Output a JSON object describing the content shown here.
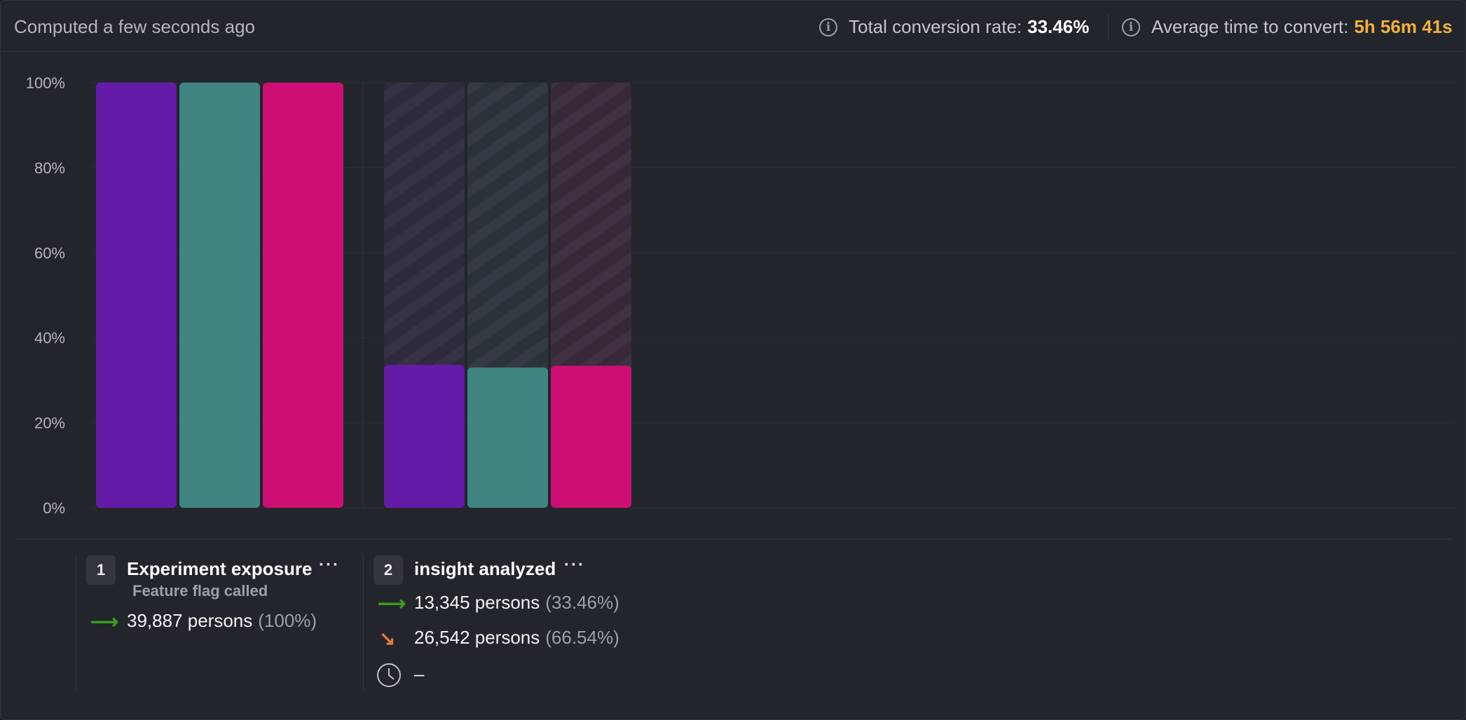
{
  "header": {
    "computed_text": "Computed a few seconds ago",
    "total_conversion_label": "Total conversion rate:",
    "total_conversion_value": "33.46%",
    "avg_time_label": "Average time to convert:",
    "avg_time_value": "5h 56m 41s",
    "info_icon": "info-icon"
  },
  "colors": {
    "background": "#23252c",
    "series_purple": "#631ba8",
    "series_teal": "#408582",
    "series_pink": "#cd0f74",
    "accent_orange": "#f4b03b",
    "arrow_green": "#3a9c1d",
    "arrow_orange": "#e57a3c"
  },
  "chart_data": {
    "type": "bar",
    "categories": [
      "Experiment exposure",
      "insight analyzed"
    ],
    "series": [
      {
        "color": "#631ba8",
        "values": [
          100,
          33.6
        ]
      },
      {
        "color": "#408582",
        "values": [
          100,
          33.0
        ]
      },
      {
        "color": "#cd0f74",
        "values": [
          100,
          33.4
        ]
      }
    ],
    "y_ticks": [
      "0%",
      "20%",
      "40%",
      "60%",
      "80%",
      "100%"
    ],
    "ylim": [
      0,
      100
    ],
    "grid": true,
    "dropoff_pattern": "hatched"
  },
  "steps": [
    {
      "number": "1",
      "title": "Experiment exposure",
      "subtitle": "Feature flag called",
      "more": "···",
      "converted": {
        "persons": "39,887 persons",
        "pct": "(100%)",
        "icon": "arrow-right-icon"
      }
    },
    {
      "number": "2",
      "title": "insight analyzed",
      "more": "···",
      "converted": {
        "persons": "13,345 persons",
        "pct": "(33.46%)",
        "icon": "arrow-right-icon"
      },
      "dropped": {
        "persons": "26,542 persons",
        "pct": "(66.54%)",
        "icon": "arrow-down-right-icon"
      },
      "time": {
        "value": "–",
        "icon": "clock-icon"
      }
    }
  ]
}
